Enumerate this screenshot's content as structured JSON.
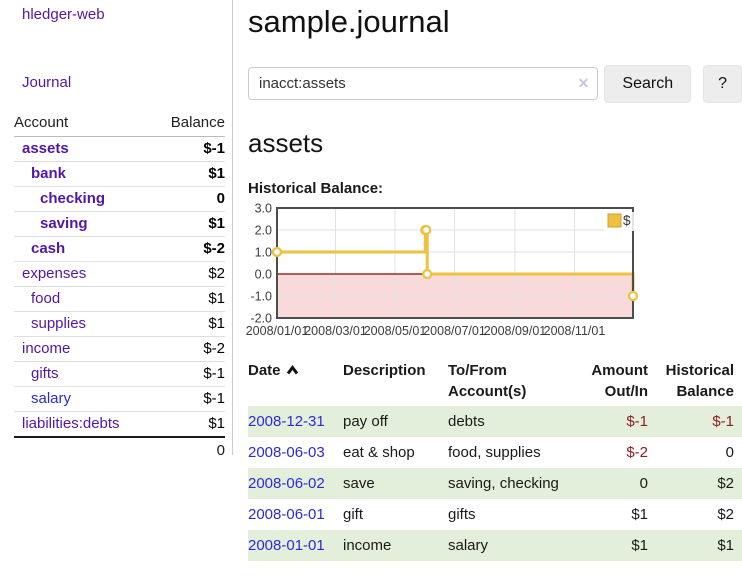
{
  "sidebar": {
    "brand": "hledger-web",
    "journal_link": "Journal",
    "accounts_table": {
      "headers": {
        "account": "Account",
        "balance": "Balance"
      },
      "rows": [
        {
          "account": "assets",
          "indent": 0,
          "bold": true,
          "balance": "$-1",
          "balance_style": "neg-strong"
        },
        {
          "account": "bank",
          "indent": 1,
          "bold": true,
          "balance": "$1",
          "balance_style": "pos"
        },
        {
          "account": "checking",
          "indent": 2,
          "bold": true,
          "balance": "0",
          "balance_style": "pos"
        },
        {
          "account": "saving",
          "indent": 2,
          "bold": true,
          "balance": "$1",
          "balance_style": "pos"
        },
        {
          "account": "cash",
          "indent": 1,
          "bold": true,
          "balance": "$-2",
          "balance_style": "neg-strong"
        },
        {
          "account": "expenses",
          "indent": 0,
          "bold": false,
          "balance": "$2",
          "balance_style": "pos"
        },
        {
          "account": "food",
          "indent": 1,
          "bold": false,
          "balance": "$1",
          "balance_style": "pos"
        },
        {
          "account": "supplies",
          "indent": 1,
          "bold": false,
          "balance": "$1",
          "balance_style": "pos"
        },
        {
          "account": "income",
          "indent": 0,
          "bold": false,
          "balance": "$-2",
          "balance_style": "neg-weak"
        },
        {
          "account": "gifts",
          "indent": 1,
          "bold": false,
          "balance": "$-1",
          "balance_style": "neg-weak"
        },
        {
          "account": "salary",
          "indent": 1,
          "bold": false,
          "balance": "$-1",
          "balance_style": "neg-weak",
          "link_style": "blue"
        },
        {
          "account": "liabilities:debts",
          "indent": 0,
          "bold": false,
          "balance": "$1",
          "balance_style": "pos"
        }
      ],
      "total": "0"
    }
  },
  "header": {
    "title": "sample.journal"
  },
  "search": {
    "value": "inacct:assets",
    "clear_icon": "✕",
    "button_label": "Search",
    "help_label": "?"
  },
  "account_page": {
    "heading": "assets",
    "chart_label": "Historical Balance:"
  },
  "chart_data": {
    "type": "line",
    "step": true,
    "title": "Historical Balance:",
    "legend": {
      "label": "$",
      "position": "top-right"
    },
    "x_range": [
      "2008-01-01",
      "2008-12-31"
    ],
    "ylim": [
      -2,
      3
    ],
    "y_ticks": [
      3.0,
      2.0,
      1.0,
      0.0,
      -1.0,
      -2.0
    ],
    "x_ticks": [
      {
        "date": "2008-01-01",
        "label": "2008/01/01"
      },
      {
        "date": "2008-03-01",
        "label": "2008/03/01"
      },
      {
        "date": "2008-05-01",
        "label": "2008/05/01"
      },
      {
        "date": "2008-07-01",
        "label": "2008/07/01"
      },
      {
        "date": "2008-09-01",
        "label": "2008/09/01"
      },
      {
        "date": "2008-11-01",
        "label": "2008/11/01"
      }
    ],
    "series": [
      {
        "name": "$",
        "color": "#edc240",
        "points": [
          [
            "2008-01-01",
            1
          ],
          [
            "2008-06-01",
            2
          ],
          [
            "2008-06-02",
            2
          ],
          [
            "2008-06-03",
            0
          ],
          [
            "2008-12-31",
            -1
          ]
        ]
      }
    ],
    "styles": {
      "negative_region": "#f9dada",
      "zero_line": "#8b0000",
      "grid": "#e2e2e2",
      "border": "#4d4d4d",
      "legend_square_stroke": "#cfa22e"
    }
  },
  "transactions": {
    "headers": {
      "date": "Date",
      "description": "Description",
      "accounts": "To/From Account(s)",
      "amount": "Amount Out/In",
      "balance": "Historical Balance"
    },
    "rows": [
      {
        "date": "2008-12-31",
        "description": "pay off",
        "accounts": "debts",
        "amount": "$-1",
        "balance": "$-1"
      },
      {
        "date": "2008-06-03",
        "description": "eat & shop",
        "accounts": "food, supplies",
        "amount": "$-2",
        "balance": "0"
      },
      {
        "date": "2008-06-02",
        "description": "save",
        "accounts": "saving, checking",
        "amount": "0",
        "balance": "$2"
      },
      {
        "date": "2008-06-01",
        "description": "gift",
        "accounts": "gifts",
        "amount": "$1",
        "balance": "$2"
      },
      {
        "date": "2008-01-01",
        "description": "income",
        "accounts": "salary",
        "amount": "$1",
        "balance": "$1"
      }
    ]
  }
}
